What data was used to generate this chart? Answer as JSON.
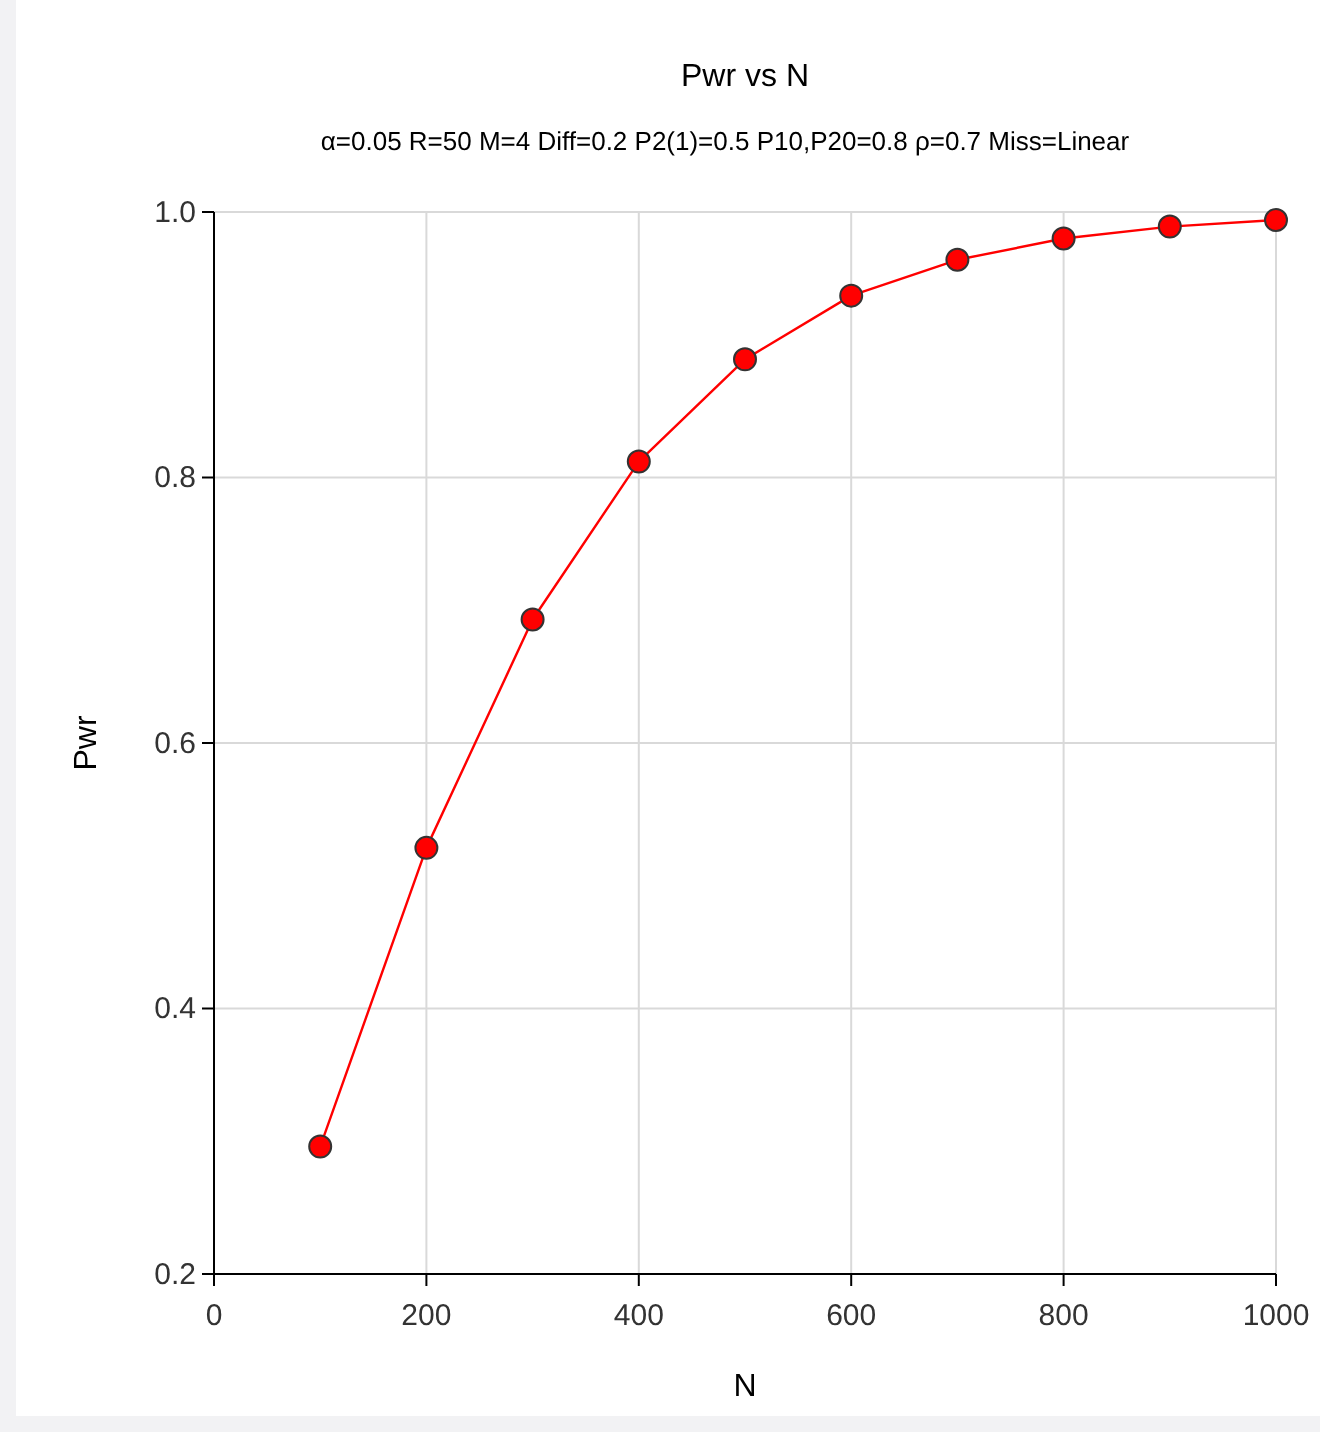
{
  "chart_data": {
    "type": "line",
    "title": "Pwr vs N",
    "subtitle": "α=0.05 R=50 M=4 Diff=0.2 P2(1)=0.5 P10,P20=0.8 ρ=0.7 Miss=Linear",
    "xlabel": "N",
    "ylabel": "Pwr",
    "x": [
      100,
      200,
      300,
      400,
      500,
      600,
      700,
      800,
      900,
      1000
    ],
    "series": [
      {
        "color": "#ff0000",
        "values": [
          0.296,
          0.521,
          0.693,
          0.812,
          0.889,
          0.937,
          0.964,
          0.98,
          0.989,
          0.994
        ]
      }
    ],
    "xlim": [
      0,
      1000
    ],
    "xticks": [
      0,
      200,
      400,
      600,
      800,
      1000
    ],
    "ylim": [
      0.2,
      1.0
    ],
    "yticks": [
      {
        "value": 0.2,
        "label": "0.2"
      },
      {
        "value": 0.4,
        "label": "0.4"
      },
      {
        "value": 0.6,
        "label": "0.6"
      },
      {
        "value": 0.8,
        "label": "0.8"
      },
      {
        "value": 1.0,
        "label": "1.0"
      }
    ],
    "grid": true,
    "marker": "circle",
    "line_style": "solid"
  }
}
